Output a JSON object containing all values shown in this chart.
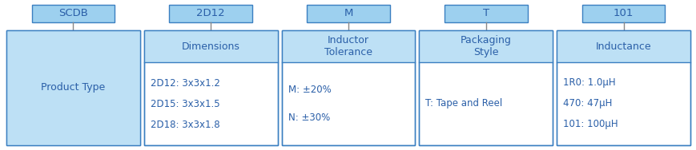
{
  "bg_color": "#ffffff",
  "box_fill_light": "#bde0f5",
  "box_fill_header": "#9dd0ef",
  "box_edge_color": "#3a7fc1",
  "text_color": "#2a5fa8",
  "connector_color": "#888888",
  "fig_w": 8.7,
  "fig_h": 1.88,
  "dpi": 100,
  "columns": [
    {
      "label": "SCDB",
      "header": "Product Type",
      "details": [],
      "header_only": true
    },
    {
      "label": "2D12",
      "header": "Dimensions",
      "details": [
        "2D12: 3x3x1.2",
        "2D15: 3x3x1.5",
        "2D18: 3x3x1.8"
      ],
      "header_only": false
    },
    {
      "label": "M",
      "header": "Inductor\nTolerance",
      "details": [
        "M: ±20%",
        "N: ±30%"
      ],
      "header_only": false
    },
    {
      "label": "T",
      "header": "Packaging\nStyle",
      "details": [
        "T: Tape and Reel"
      ],
      "header_only": false
    },
    {
      "label": "101",
      "header": "Inductance",
      "details": [
        "1R0: 1.0μH",
        "470: 47μH",
        "101: 100μH"
      ],
      "header_only": false
    }
  ]
}
